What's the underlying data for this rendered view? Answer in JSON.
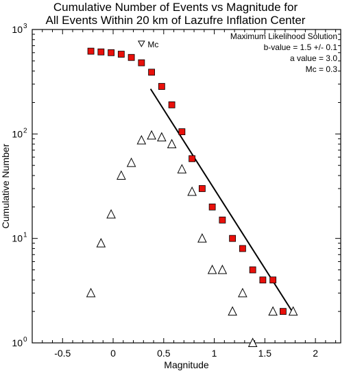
{
  "chart_data": {
    "type": "scatter",
    "title_line1": "Cumulative Number of Events vs Magnitude for",
    "title_line2": "All Events Within 20 km of Lazufre Inflation Center",
    "xlabel": "Magnitude",
    "ylabel": "Cumulative Number",
    "xlim": [
      -0.8,
      2.25
    ],
    "ylim": [
      1,
      1000
    ],
    "yscale": "log",
    "x_ticks": [
      {
        "value": -0.5,
        "label": "-0.5"
      },
      {
        "value": 0,
        "label": "0"
      },
      {
        "value": 0.5,
        "label": "0.5"
      },
      {
        "value": 1,
        "label": "1"
      },
      {
        "value": 1.5,
        "label": "1.5"
      },
      {
        "value": 2,
        "label": "2"
      }
    ],
    "y_ticks": [
      {
        "value": 1,
        "base": "10",
        "exp": "0"
      },
      {
        "value": 10,
        "base": "10",
        "exp": "1"
      },
      {
        "value": 100,
        "base": "10",
        "exp": "2"
      },
      {
        "value": 1000,
        "base": "10",
        "exp": "3"
      }
    ],
    "series": [
      {
        "marker": "square",
        "color": "#e8100b",
        "points": [
          [
            -0.22,
            620
          ],
          [
            -0.12,
            610
          ],
          [
            -0.02,
            600
          ],
          [
            0.08,
            580
          ],
          [
            0.18,
            540
          ],
          [
            0.28,
            480
          ],
          [
            0.38,
            390
          ],
          [
            0.48,
            285
          ],
          [
            0.58,
            190
          ],
          [
            0.68,
            105
          ],
          [
            0.78,
            58
          ],
          [
            0.88,
            30
          ],
          [
            0.98,
            20
          ],
          [
            1.08,
            15
          ],
          [
            1.18,
            10
          ],
          [
            1.28,
            8
          ],
          [
            1.38,
            5
          ],
          [
            1.48,
            4
          ],
          [
            1.58,
            4
          ],
          [
            1.68,
            2
          ]
        ]
      },
      {
        "marker": "triangle",
        "color": "#000000",
        "points": [
          [
            -0.22,
            3
          ],
          [
            -0.12,
            9
          ],
          [
            -0.02,
            17
          ],
          [
            0.08,
            40
          ],
          [
            0.18,
            53
          ],
          [
            0.28,
            87
          ],
          [
            0.38,
            97
          ],
          [
            0.48,
            93
          ],
          [
            0.58,
            80
          ],
          [
            0.68,
            46
          ],
          [
            0.78,
            28
          ],
          [
            0.88,
            10
          ],
          [
            0.98,
            5
          ],
          [
            1.08,
            5
          ],
          [
            1.18,
            2
          ],
          [
            1.28,
            3
          ],
          [
            1.38,
            1
          ],
          [
            1.58,
            2
          ],
          [
            1.78,
            2
          ]
        ]
      }
    ],
    "fit_line": {
      "x": [
        0.37,
        1.77
      ],
      "y": [
        270,
        2
      ]
    },
    "mc_marker": {
      "x": 0.28,
      "y": 730,
      "label": "Mc"
    },
    "annotations": [
      "Maximum Likelihood Solution",
      "b-value = 1.5 +/- 0.1",
      "a value = 3.0",
      "Mc = 0.3"
    ],
    "grid": false,
    "legend": "none"
  }
}
